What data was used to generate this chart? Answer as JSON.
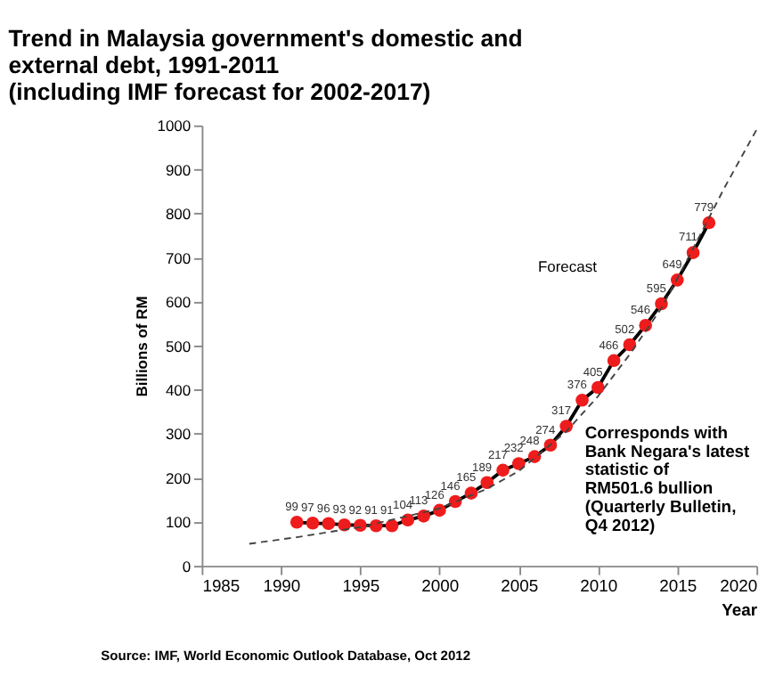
{
  "chart_data": {
    "type": "line",
    "title": [
      "Trend in Malaysia government's domestic and",
      "external debt, 1991-2011",
      "(including IMF forecast for 2002-2017)"
    ],
    "xlabel": "Year",
    "ylabel": "Billions of RM",
    "series": [
      {
        "color": "#ee1c1c",
        "marker": "circle",
        "line_style": "solid",
        "data_labels": true,
        "x": [
          1991,
          1992,
          1993,
          1994,
          1995,
          1996,
          1997,
          1998,
          1999,
          2000,
          2001,
          2002,
          2003,
          2004,
          2005,
          2006,
          2007,
          2008,
          2009,
          2010,
          2011,
          2012,
          2013,
          2014,
          2015,
          2016,
          2017
        ],
        "values": [
          99,
          97,
          96,
          93,
          92,
          91,
          91,
          104,
          113,
          126,
          146,
          165,
          189,
          217,
          232,
          248,
          274,
          317,
          376,
          405,
          466,
          502,
          546,
          595,
          649,
          711,
          779
        ]
      },
      {
        "type": "line",
        "color": "#444444",
        "marker": "none",
        "line_style": "dashed",
        "x": [
          1988,
          1991,
          1995,
          2000,
          2003,
          2005,
          2008,
          2010,
          2012,
          2014,
          2016,
          2018,
          2020
        ],
        "values": [
          50,
          65,
          88,
          130,
          175,
          215,
          305,
          385,
          480,
          585,
          720,
          860,
          990
        ]
      }
    ],
    "xlim": [
      1985,
      2020
    ],
    "xticks": [
      1985,
      1990,
      1995,
      2000,
      2005,
      2010,
      2015,
      2020
    ],
    "ylim": [
      0,
      1000
    ],
    "yticks": [
      0,
      100,
      200,
      300,
      400,
      500,
      600,
      700,
      800,
      900,
      1000
    ],
    "grid": false,
    "annotations": [
      "Forecast",
      "Corresponds with\nBank Negara's latest\nstatistic of\nRM501.6 bullion\n(Quarterly Bulletin,\nQ4 2012)",
      "Source: IMF, World Economic Outlook Database, Oct 2012"
    ]
  }
}
